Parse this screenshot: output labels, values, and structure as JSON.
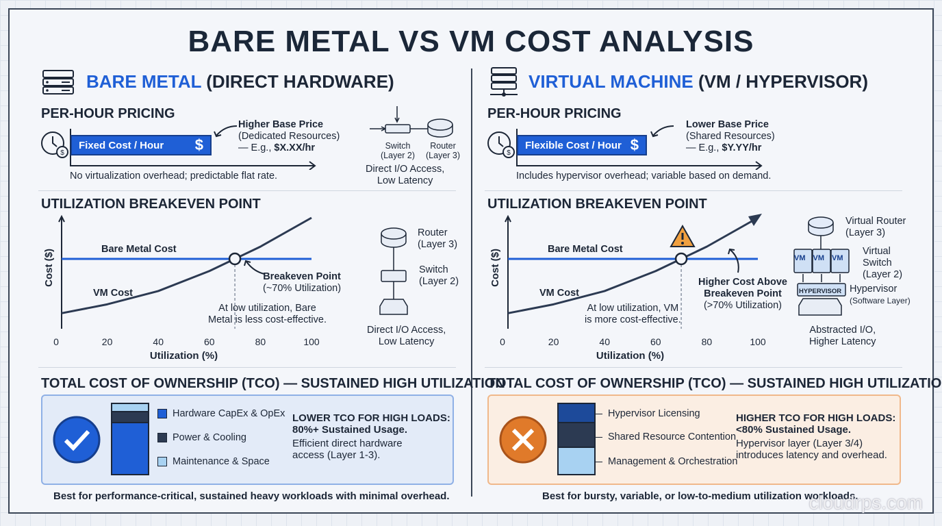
{
  "title": "BARE METAL VS VM COST ANALYSIS",
  "colors": {
    "accent": "#1f5fd6",
    "dark": "#1c2636",
    "good": "#1f5fd6",
    "bad": "#e07a2a"
  },
  "left": {
    "heading_accent": "BARE METAL",
    "heading_rest": " (DIRECT HARDWARE)",
    "pricing": {
      "title": "PER-HOUR PRICING",
      "bar_label": "Fixed Cost / Hour",
      "bar_symbol": "$",
      "note_title": "Higher Base Price",
      "note_sub": "(Dedicated Resources)",
      "note_eg": "— E.g., ",
      "note_price": "$X.XX/hr",
      "caption": "No virtualization overhead; predictable flat rate.",
      "net": {
        "switch": "Switch",
        "switch_layer": "(Layer 2)",
        "router": "Router",
        "router_layer": "(Layer 3)",
        "io1": "Direct I/O Access,",
        "io2": "Low Latency"
      }
    },
    "breakeven": {
      "title": "UTILIZATION BREAKEVEN POINT",
      "bm_label": "Bare Metal Cost",
      "vm_label": "VM Cost",
      "point1": "Breakeven Point",
      "point2": "(~70% Utilization)",
      "note1": "At low utilization, Bare",
      "note2": "Metal is less cost-effective.",
      "net": {
        "router": "Router",
        "router_layer": "(Layer 3)",
        "switch": "Switch",
        "switch_layer": "(Layer 2)",
        "io1": "Direct I/O Access,",
        "io2": "Low Latency"
      }
    },
    "tco": {
      "title": "TOTAL COST OF OWNERSHIP (TCO) — SUSTAINED HIGH UTILIZATION",
      "legend": [
        "Hardware CapEx & OpEx",
        "Power & Cooling",
        "Maintenance & Space"
      ],
      "verdict": "LOWER TCO FOR HIGH LOADS:",
      "usage": "80%+ Sustained Usage.",
      "desc1": "Efficient direct hardware",
      "desc2": "access (Layer 1-3).",
      "footer": "Best for performance-critical, sustained heavy workloads with minimal overhead."
    }
  },
  "right": {
    "heading_accent": "VIRTUAL MACHINE",
    "heading_rest": " (VM / HYPERVISOR)",
    "pricing": {
      "title": "PER-HOUR PRICING",
      "bar_label": "Flexible Cost / Hour",
      "bar_symbol": "$",
      "note_title": "Lower Base Price",
      "note_sub": "(Shared Resources)",
      "note_eg": "— E.g., ",
      "note_price": "$Y.YY/hr",
      "caption": "Includes hypervisor overhead; variable based on demand."
    },
    "breakeven": {
      "title": "UTILIZATION BREAKEVEN POINT",
      "bm_label": "Bare Metal Cost",
      "vm_label": "VM Cost",
      "above1": "Higher Cost Above",
      "above2": "Breakeven Point",
      "above3": "(>70% Utilization)",
      "note1": "At low utilization, VM",
      "note2": "is more cost-effective.",
      "net": {
        "vrouter": "Virtual Router",
        "vrouter_layer": "(Layer 3)",
        "vswitch1": "Virtual",
        "vswitch2": "Switch",
        "vswitch_layer": "(Layer 2)",
        "vm": "VM",
        "hyp_box": "HYPERVISOR",
        "hyp": "Hypervisor",
        "hyp_layer": "(Software Layer)",
        "io1": "Abstracted I/O,",
        "io2": "Higher Latency"
      }
    },
    "tco": {
      "title": "TOTAL COST OF OWNERSHIP (TCO) — SUSTAINED HIGH UTILIZATION",
      "legend": [
        "Hypervisor Licensing",
        "Shared Resource Contention",
        "Management & Orchestration"
      ],
      "verdict": "HIGHER TCO FOR HIGH LOADS:",
      "usage": "<80% Sustained Usage.",
      "desc1": "Hypervisor layer (Layer 3/4)",
      "desc2": "introduces latency and overhead.",
      "footer": "Best for bursty, variable, or low-to-medium utilization workloads."
    }
  },
  "chart_data": [
    {
      "type": "line",
      "title": "Utilization Breakeven Point (Bare Metal)",
      "xlabel": "Utilization (%)",
      "ylabel": "Cost ($)",
      "xticks": [
        0,
        20,
        40,
        60,
        80,
        100
      ],
      "xlim": [
        0,
        100
      ],
      "ylim": [
        0,
        100
      ],
      "series": [
        {
          "name": "Bare Metal Cost",
          "x": [
            0,
            100
          ],
          "y": [
            63,
            63
          ]
        },
        {
          "name": "VM Cost",
          "x": [
            0,
            20,
            40,
            60,
            70,
            80,
            100
          ],
          "y": [
            14,
            22,
            34,
            52,
            63,
            74,
            100
          ]
        }
      ],
      "breakeven_x": 70
    },
    {
      "type": "line",
      "title": "Utilization Breakeven Point (VM)",
      "xlabel": "Utilization (%)",
      "ylabel": "Cost ($)",
      "xticks": [
        0,
        20,
        40,
        60,
        80,
        100
      ],
      "xlim": [
        0,
        100
      ],
      "ylim": [
        0,
        100
      ],
      "series": [
        {
          "name": "Bare Metal Cost",
          "x": [
            0,
            100
          ],
          "y": [
            63,
            63
          ]
        },
        {
          "name": "VM Cost",
          "x": [
            0,
            20,
            40,
            60,
            70,
            80,
            100
          ],
          "y": [
            14,
            22,
            34,
            52,
            63,
            74,
            100
          ]
        }
      ],
      "breakeven_x": 70
    }
  ],
  "watermark": "cloudrps.com"
}
